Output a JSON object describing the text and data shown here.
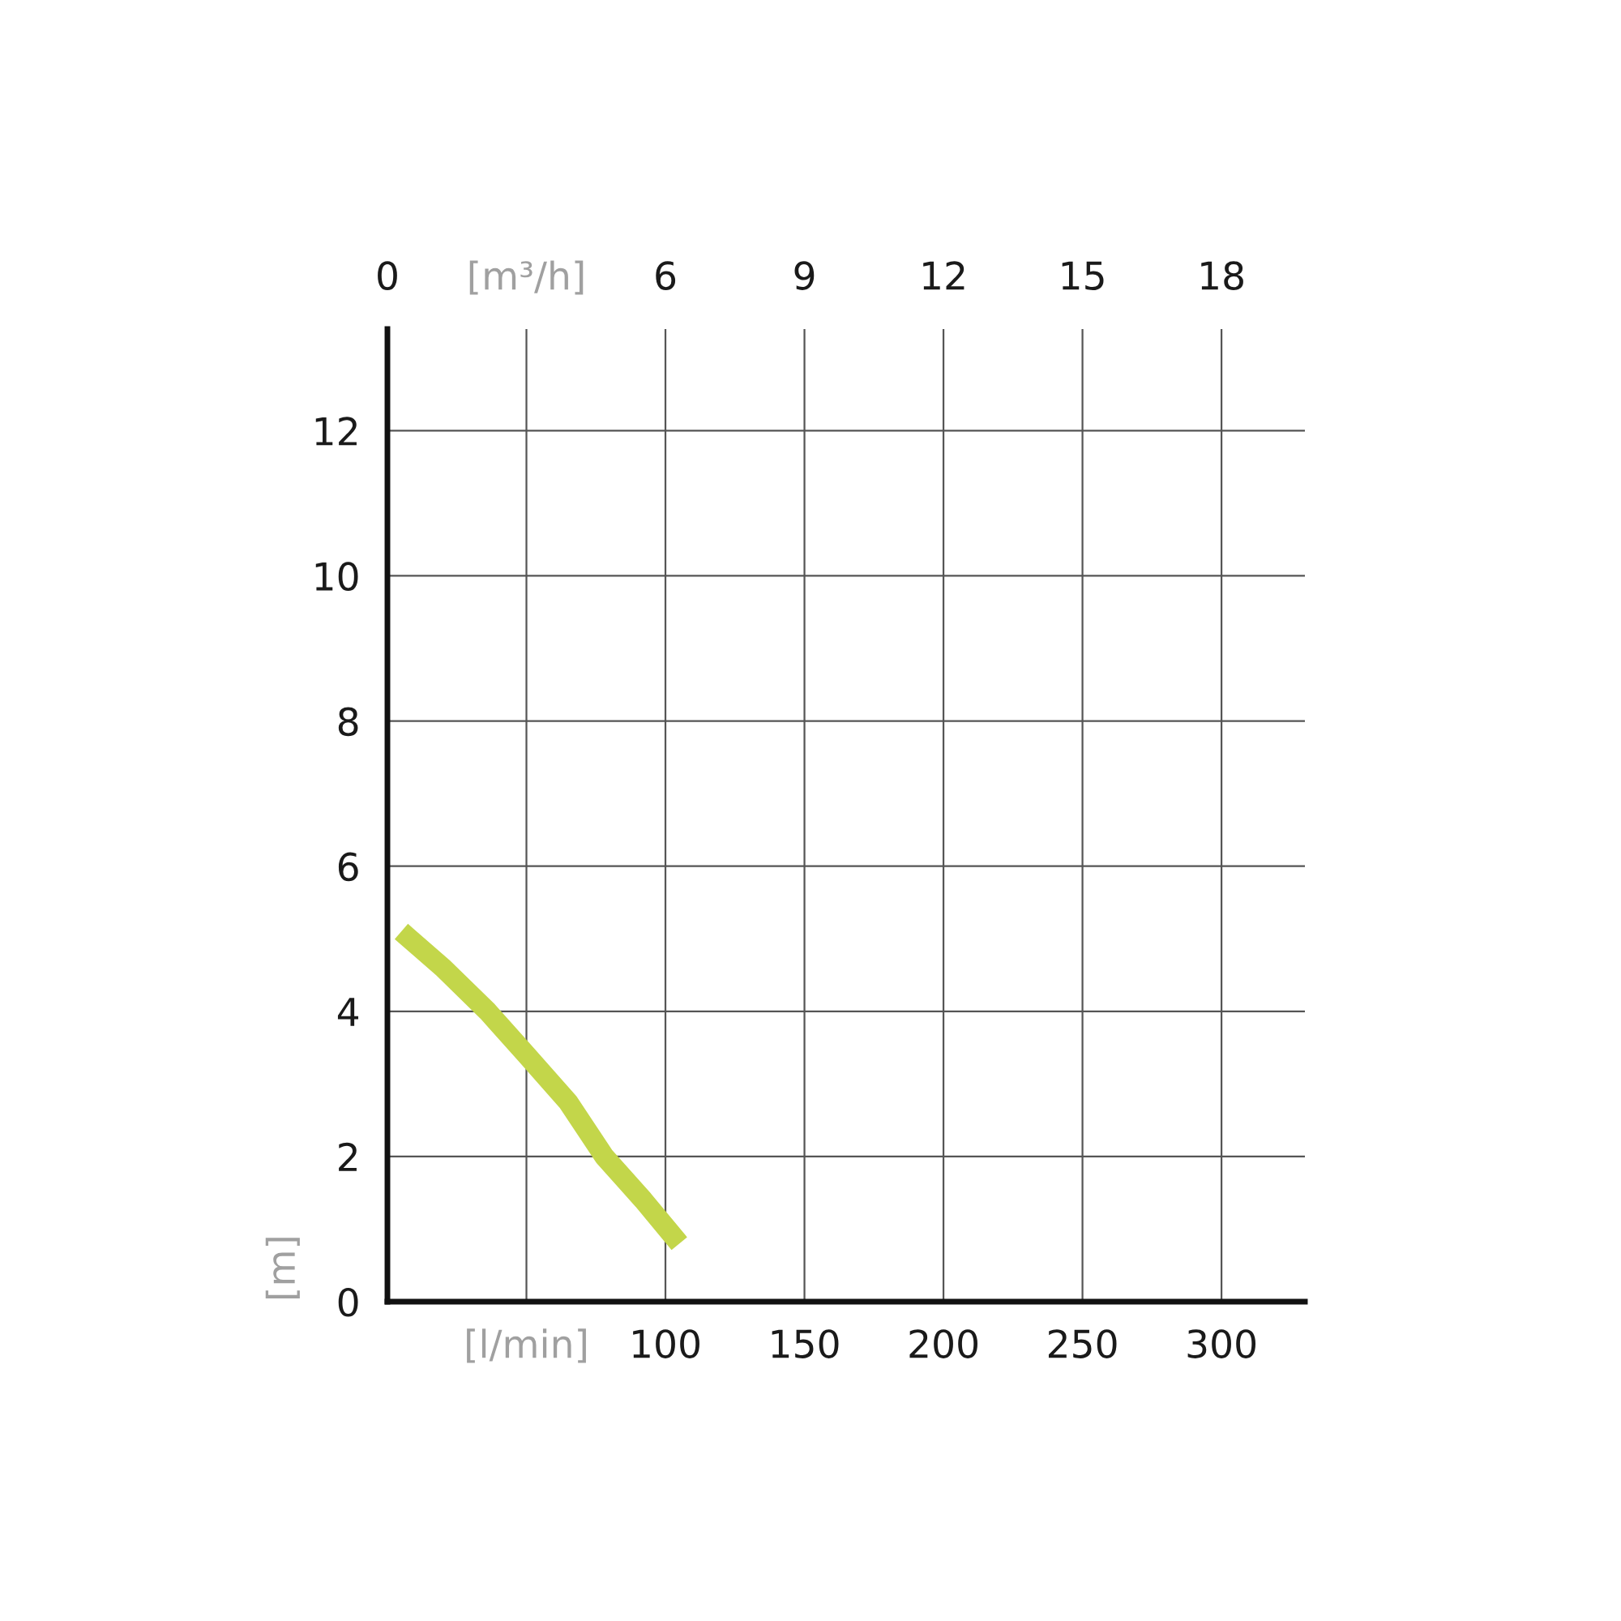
{
  "chart_data": {
    "type": "line",
    "ylabel": "[m]",
    "series": [
      {
        "color": "#c3d64a",
        "x": [
          5,
          20,
          36,
          50,
          65,
          78,
          92,
          105
        ],
        "values": [
          5.1,
          4.6,
          4.0,
          3.4,
          2.75,
          2.0,
          1.4,
          0.8
        ]
      }
    ],
    "xlim": [
      0,
      330
    ],
    "xticks": [
      {
        "value": 50,
        "label": "[l/min]"
      },
      100,
      150,
      200,
      250,
      300
    ],
    "x2lim": [
      0,
      19.8
    ],
    "x2ticks": [
      0,
      {
        "value": 3,
        "label": "[m³/h]"
      },
      6,
      9,
      12,
      15,
      18
    ],
    "ylim": [
      0,
      13.4
    ],
    "yticks": [
      0,
      {
        "value": 2,
        "label": "2"
      },
      4,
      6,
      8,
      10,
      12
    ],
    "grid": true,
    "legend": false,
    "marker": "none",
    "line_style": "solid"
  }
}
